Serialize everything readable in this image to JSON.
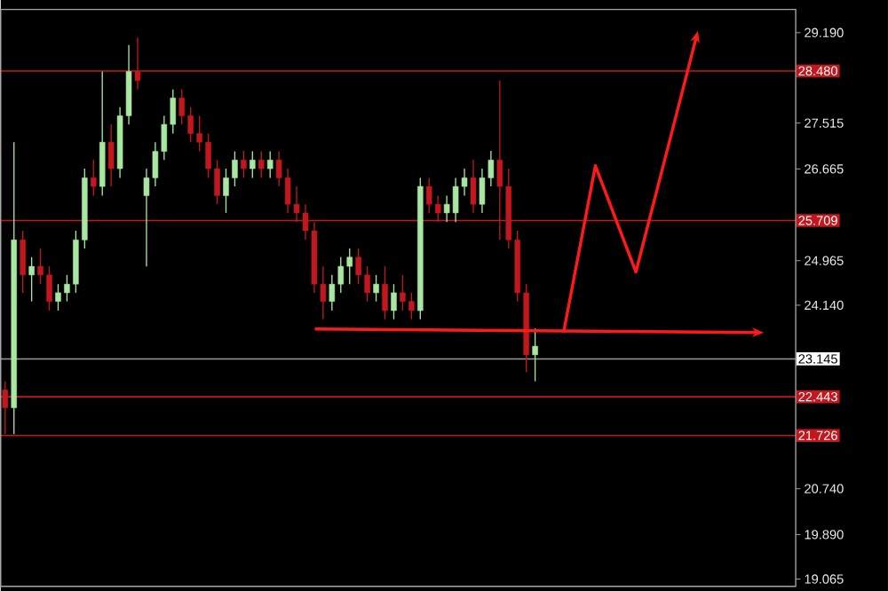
{
  "chart_data": {
    "type": "candlestick",
    "tick_labels": "y",
    "ylim": [
      18.93,
      29.62
    ],
    "yticks": [
      {
        "value": 29.19,
        "label": "29.190"
      },
      {
        "value": 27.515,
        "label": "27.515"
      },
      {
        "value": 26.665,
        "label": "26.665"
      },
      {
        "value": 24.965,
        "label": "24.965"
      },
      {
        "value": 24.14,
        "label": "24.140"
      },
      {
        "value": 20.74,
        "label": "20.740"
      },
      {
        "value": 19.89,
        "label": "19.890"
      },
      {
        "value": 19.065,
        "label": "19.065"
      }
    ],
    "ref_lines": [
      {
        "axis": "y",
        "value": 28.48,
        "label": "28.480",
        "color": "#c0181e"
      },
      {
        "axis": "y",
        "value": 25.709,
        "label": "25.709",
        "color": "#c0181e"
      },
      {
        "axis": "y",
        "value": 23.145,
        "label": "23.145",
        "color": "#9a9a9a"
      },
      {
        "axis": "y",
        "value": 22.443,
        "label": "22.443",
        "color": "#c0181e"
      },
      {
        "axis": "y",
        "value": 21.726,
        "label": "21.726",
        "color": "#c0181e"
      }
    ],
    "categories": [
      null,
      null,
      null,
      null,
      null,
      null,
      null,
      null,
      null,
      null,
      null,
      null,
      null,
      null,
      null,
      null,
      null,
      null,
      null,
      null,
      null,
      null,
      null,
      null,
      null,
      null,
      null,
      null,
      null,
      null,
      null,
      null,
      null,
      null,
      null,
      null,
      null,
      null,
      null,
      null,
      null,
      null,
      null,
      null,
      null,
      null,
      null,
      null,
      null,
      null,
      null,
      null,
      null,
      null,
      null,
      null,
      null,
      null,
      null,
      null,
      null,
      null,
      null,
      null,
      null,
      null,
      null,
      null,
      null,
      null,
      null,
      null,
      null,
      null,
      null,
      null,
      null,
      null,
      null,
      null,
      null,
      null,
      null,
      null,
      null,
      null,
      null,
      null,
      null,
      null
    ],
    "ohlc": [
      [
        22.57,
        22.73,
        21.75,
        22.24
      ],
      [
        22.24,
        27.16,
        21.75,
        25.35
      ],
      [
        25.35,
        25.52,
        24.37,
        24.7
      ],
      [
        24.7,
        25.03,
        24.21,
        24.86
      ],
      [
        24.86,
        25.19,
        24.53,
        24.7
      ],
      [
        24.7,
        24.86,
        24.04,
        24.21
      ],
      [
        24.21,
        24.53,
        24.04,
        24.37
      ],
      [
        24.37,
        24.7,
        24.21,
        24.53
      ],
      [
        24.53,
        25.52,
        24.37,
        25.35
      ],
      [
        25.35,
        26.67,
        25.19,
        26.5
      ],
      [
        26.5,
        26.83,
        26.17,
        26.34
      ],
      [
        26.34,
        28.47,
        26.17,
        27.16
      ],
      [
        27.16,
        27.49,
        26.34,
        26.67
      ],
      [
        26.67,
        27.81,
        26.5,
        27.65
      ],
      [
        27.65,
        28.96,
        27.49,
        28.47
      ],
      [
        28.47,
        29.1,
        28.14,
        28.3
      ],
      [
        26.17,
        26.67,
        24.86,
        26.5
      ],
      [
        26.5,
        27.16,
        26.34,
        26.99
      ],
      [
        26.99,
        27.65,
        26.83,
        27.49
      ],
      [
        27.49,
        28.14,
        27.32,
        27.98
      ],
      [
        27.98,
        28.14,
        27.49,
        27.65
      ],
      [
        27.65,
        27.81,
        27.16,
        27.32
      ],
      [
        27.32,
        27.65,
        26.99,
        27.16
      ],
      [
        27.16,
        27.32,
        26.5,
        26.67
      ],
      [
        26.67,
        26.83,
        26.01,
        26.17
      ],
      [
        26.17,
        26.67,
        25.85,
        26.5
      ],
      [
        26.5,
        26.99,
        26.34,
        26.83
      ],
      [
        26.83,
        27.0,
        26.5,
        26.67
      ],
      [
        26.67,
        26.99,
        26.5,
        26.83
      ],
      [
        26.83,
        26.99,
        26.5,
        26.67
      ],
      [
        26.67,
        26.99,
        26.5,
        26.83
      ],
      [
        26.83,
        26.99,
        26.34,
        26.5
      ],
      [
        26.5,
        26.67,
        25.85,
        26.01
      ],
      [
        26.01,
        26.34,
        25.68,
        25.85
      ],
      [
        25.85,
        26.01,
        25.35,
        25.52
      ],
      [
        25.52,
        25.68,
        24.37,
        24.53
      ],
      [
        24.53,
        24.86,
        23.88,
        24.21
      ],
      [
        24.21,
        24.7,
        24.04,
        24.53
      ],
      [
        24.53,
        25.03,
        24.37,
        24.86
      ],
      [
        24.86,
        25.19,
        24.53,
        25.03
      ],
      [
        25.03,
        25.19,
        24.53,
        24.7
      ],
      [
        24.7,
        24.86,
        24.21,
        24.37
      ],
      [
        24.37,
        24.7,
        24.21,
        24.53
      ],
      [
        24.53,
        24.86,
        23.88,
        24.04
      ],
      [
        24.04,
        24.53,
        23.88,
        24.37
      ],
      [
        24.37,
        24.7,
        24.04,
        24.21
      ],
      [
        24.21,
        24.37,
        23.88,
        24.04
      ],
      [
        24.04,
        26.5,
        23.88,
        26.34
      ],
      [
        26.34,
        26.5,
        25.85,
        26.01
      ],
      [
        26.01,
        26.17,
        25.68,
        25.85
      ],
      [
        25.85,
        26.17,
        25.68,
        26.01
      ],
      [
        25.85,
        26.5,
        25.68,
        26.34
      ],
      [
        26.34,
        26.67,
        26.17,
        26.5
      ],
      [
        26.5,
        26.83,
        25.85,
        26.01
      ],
      [
        26.01,
        26.67,
        25.85,
        26.5
      ],
      [
        26.5,
        27.0,
        26.34,
        26.83
      ],
      [
        26.83,
        28.3,
        25.35,
        26.34
      ],
      [
        26.34,
        26.67,
        25.19,
        25.35
      ],
      [
        25.35,
        25.52,
        24.21,
        24.37
      ],
      [
        24.37,
        24.53,
        22.9,
        23.22
      ],
      [
        23.22,
        23.71,
        22.73,
        23.38
      ],
      null,
      null,
      null,
      null,
      null,
      null,
      null,
      null,
      null,
      null,
      null,
      null,
      null,
      null,
      null,
      null,
      null,
      null,
      null,
      null,
      null,
      null,
      null,
      null,
      null,
      null,
      null,
      null,
      null
    ],
    "colors": [
      "#c0181e",
      "#a8e6a1",
      "#c0181e",
      "#a8e6a1",
      "#c0181e",
      "#c0181e",
      "#a8e6a1",
      "#a8e6a1",
      "#a8e6a1",
      "#a8e6a1",
      "#c0181e",
      "#a8e6a1",
      "#c0181e",
      "#a8e6a1",
      "#a8e6a1",
      "#c0181e",
      "#a8e6a1",
      "#a8e6a1",
      "#a8e6a1",
      "#a8e6a1",
      "#c0181e",
      "#c0181e",
      "#c0181e",
      "#c0181e",
      "#c0181e",
      "#a8e6a1",
      "#a8e6a1",
      "#c0181e",
      "#a8e6a1",
      "#c0181e",
      "#a8e6a1",
      "#c0181e",
      "#c0181e",
      "#c0181e",
      "#c0181e",
      "#c0181e",
      "#c0181e",
      "#a8e6a1",
      "#a8e6a1",
      "#a8e6a1",
      "#c0181e",
      "#c0181e",
      "#a8e6a1",
      "#c0181e",
      "#a8e6a1",
      "#c0181e",
      "#c0181e",
      "#a8e6a1",
      "#c0181e",
      "#c0181e",
      "#a8e6a1",
      "#a8e6a1",
      "#a8e6a1",
      "#c0181e",
      "#a8e6a1",
      "#a8e6a1",
      "#c0181e",
      "#c0181e",
      "#c0181e",
      "#c0181e",
      "#a8e6a1",
      null,
      null,
      null,
      null,
      null,
      null,
      null,
      null,
      null,
      null,
      null,
      null,
      null,
      null,
      null,
      null,
      null,
      null,
      null,
      null,
      null,
      null,
      null,
      null,
      null,
      null,
      null,
      null,
      null
    ]
  }
}
